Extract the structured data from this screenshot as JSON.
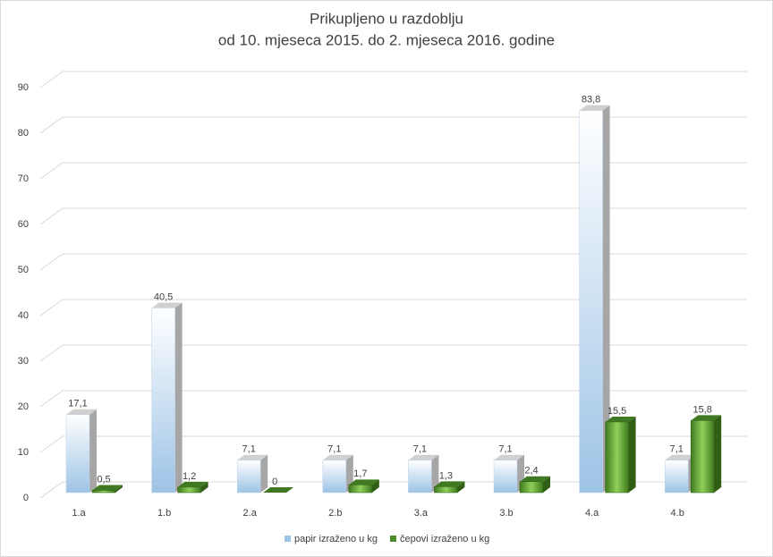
{
  "chart_data": {
    "type": "bar3d",
    "title": "Prikupljeno u razdoblju",
    "subtitle": "od 10. mjeseca 2015. do 2. mjeseca 2016. godine",
    "categories": [
      "1.a",
      "1.b",
      "2.a",
      "2.b",
      "3.a",
      "3.b",
      "4.a",
      "4.b"
    ],
    "series": [
      {
        "name": "papir izraženo u kg",
        "color": "#9dc3e6",
        "values": [
          17.1,
          40.5,
          7.1,
          7.1,
          7.1,
          7.1,
          83.8,
          7.1
        ],
        "value_labels": [
          "17,1",
          "40,5",
          "7,1",
          "7,1",
          "7,1",
          "7,1",
          "83,8",
          "7,1"
        ]
      },
      {
        "name": "čepovi izraženo u kg",
        "color": "#4e8a2a",
        "values": [
          0.5,
          1.2,
          0,
          1.7,
          1.3,
          2.4,
          15.5,
          15.8
        ],
        "value_labels": [
          "0,5",
          "1,2",
          "0",
          "1,7",
          "1,3",
          "2,4",
          "15,5",
          "15,8"
        ]
      }
    ],
    "ylim": [
      0,
      90
    ],
    "yticks": [
      0,
      10,
      20,
      30,
      40,
      50,
      60,
      70,
      80,
      90
    ],
    "grid": true,
    "legend": "bottom"
  }
}
